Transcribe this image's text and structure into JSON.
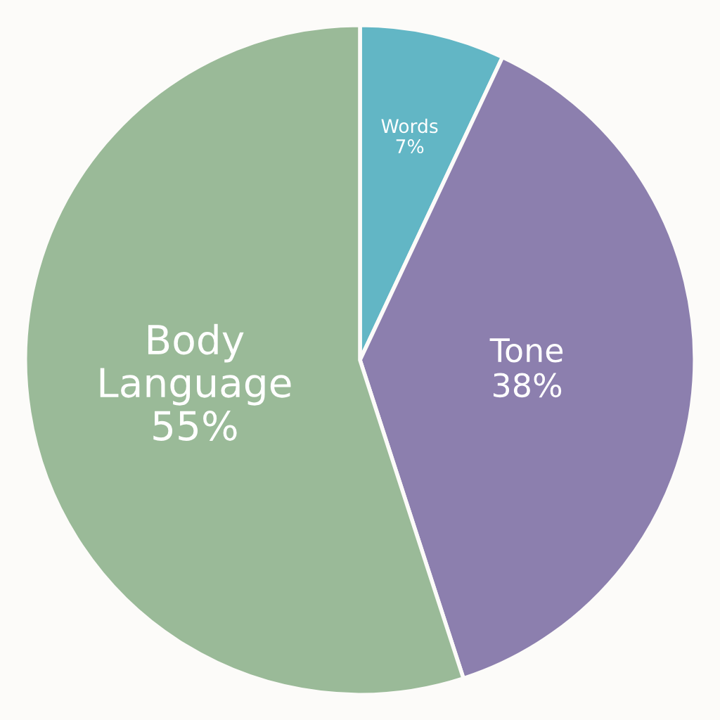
{
  "chart_data": {
    "type": "pie",
    "categories": [
      "Words",
      "Tone",
      "Body Language"
    ],
    "values": [
      7,
      38,
      55
    ],
    "value_labels": [
      "7%",
      "38%",
      "55%"
    ],
    "colors": [
      "#62b6c5",
      "#8c7fae",
      "#9aba98"
    ]
  }
}
